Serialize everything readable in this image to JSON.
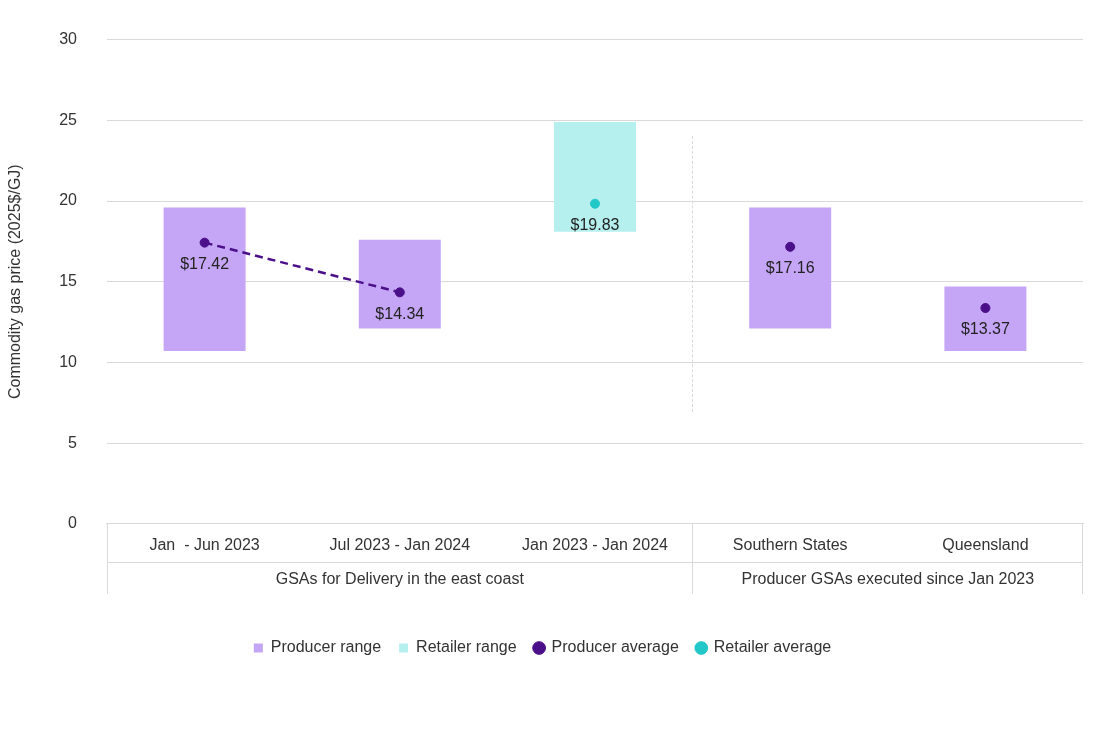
{
  "chart_data": {
    "type": "bar",
    "ylabel": "Commodity gas price (2025$/GJ)",
    "categories": [
      "Jan  - Jun 2023",
      "Jul 2023 - Jan 2024",
      "Jan 2023 - Jan 2024",
      "Southern States",
      "Queensland"
    ],
    "series": [
      {
        "name": "Producer range",
        "color": "#c5a5f5",
        "base": [
          10.7,
          12.1,
          null,
          12.1,
          10.7
        ],
        "values": [
          8.9,
          5.5,
          null,
          7.5,
          4.0
        ]
      },
      {
        "name": "Retailer range",
        "color": "#b5f0ee",
        "base": [
          null,
          null,
          18.1,
          null,
          null
        ],
        "values": [
          null,
          null,
          6.8,
          null,
          null
        ]
      },
      {
        "name": "Producer average",
        "type": "scatter",
        "marker": "circle",
        "color": "#4b0f8a",
        "values": [
          17.42,
          14.34,
          null,
          17.16,
          13.37
        ],
        "value_labels": [
          "$17.42",
          "$14.34",
          null,
          "$17.16",
          "$13.37"
        ]
      },
      {
        "name": "Retailer average",
        "type": "scatter",
        "marker": "circle",
        "color": "#22c7c7",
        "values": [
          null,
          null,
          19.83,
          null,
          null
        ],
        "value_labels": [
          null,
          null,
          "$19.83",
          null,
          null
        ]
      },
      {
        "type": "line",
        "color": "#4b0f8a",
        "line_style": "dashed",
        "values": [
          17.42,
          14.34,
          null,
          null,
          null
        ]
      }
    ],
    "ylim": [
      0,
      30
    ],
    "yticks": [
      0,
      5,
      10,
      15,
      20,
      25,
      30
    ],
    "grid": "y",
    "legend": "bottom",
    "annotations": [
      "GSAs for Delivery in the east coast",
      "Producer GSAs executed since Jan 2023"
    ]
  }
}
